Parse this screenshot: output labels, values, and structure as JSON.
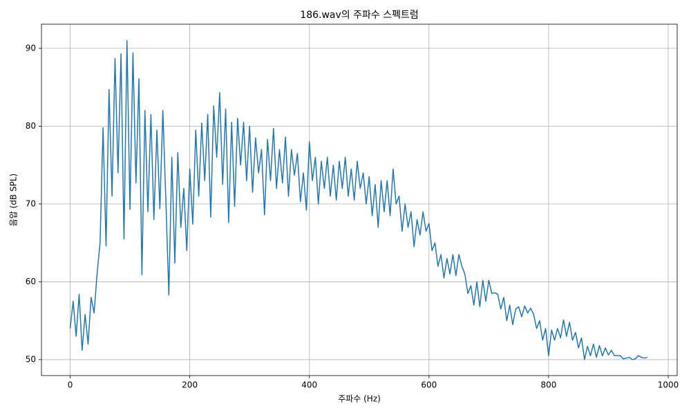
{
  "chart_data": {
    "type": "line",
    "title": "186.wav의 주파수 스펙트럼",
    "x_label": "주파수 (Hz)",
    "y_label": "음압 (dB SPL)",
    "color": "#1f77b4",
    "grid": true,
    "xlim": [
      -48,
      1015
    ],
    "ylim": [
      47.95,
      93.1
    ],
    "xticks": [
      0,
      200,
      400,
      600,
      800,
      1000
    ],
    "yticks": [
      50,
      60,
      70,
      80,
      90
    ],
    "x": [
      0,
      5,
      10,
      15,
      20,
      25,
      30,
      35,
      40,
      45,
      50,
      55,
      60,
      65,
      70,
      75,
      80,
      85,
      90,
      95,
      100,
      105,
      110,
      115,
      120,
      125,
      130,
      135,
      140,
      145,
      150,
      155,
      160,
      165,
      170,
      175,
      180,
      185,
      190,
      195,
      200,
      205,
      210,
      215,
      220,
      225,
      230,
      235,
      240,
      245,
      250,
      255,
      260,
      265,
      270,
      275,
      280,
      285,
      290,
      295,
      300,
      305,
      310,
      315,
      320,
      325,
      330,
      335,
      340,
      345,
      350,
      355,
      360,
      365,
      370,
      375,
      380,
      385,
      390,
      395,
      400,
      405,
      410,
      415,
      420,
      425,
      430,
      435,
      440,
      445,
      450,
      455,
      460,
      465,
      470,
      475,
      480,
      485,
      490,
      495,
      500,
      505,
      510,
      515,
      520,
      525,
      530,
      535,
      540,
      545,
      550,
      555,
      560,
      565,
      570,
      575,
      580,
      585,
      590,
      595,
      600,
      605,
      610,
      615,
      620,
      625,
      630,
      635,
      640,
      645,
      650,
      655,
      660,
      665,
      670,
      675,
      680,
      685,
      690,
      695,
      700,
      705,
      710,
      715,
      720,
      725,
      730,
      735,
      740,
      745,
      750,
      755,
      760,
      765,
      770,
      775,
      780,
      785,
      790,
      795,
      800,
      805,
      810,
      815,
      820,
      825,
      830,
      835,
      840,
      845,
      850,
      855,
      860,
      865,
      870,
      875,
      880,
      885,
      890,
      895,
      900,
      905,
      910,
      915,
      920,
      925,
      930,
      935,
      940,
      945,
      950,
      955,
      960,
      965
    ],
    "values": [
      54,
      57.5,
      53,
      58.4,
      51.2,
      55.8,
      52,
      58,
      56,
      61,
      65,
      79.8,
      64.6,
      84.7,
      71,
      88.7,
      74,
      89.3,
      65.5,
      91,
      69.3,
      89.4,
      72.7,
      86.1,
      60.9,
      82,
      69,
      81.5,
      68,
      79.5,
      69.4,
      82,
      70.5,
      58.3,
      76,
      62.4,
      76.6,
      67,
      72,
      64,
      74.5,
      67.4,
      79.5,
      71,
      80.4,
      73,
      81.5,
      68.3,
      82.6,
      76,
      84.3,
      72.5,
      82.2,
      67.6,
      80.5,
      69.7,
      81,
      75,
      80.5,
      73,
      80,
      71.5,
      78.5,
      74,
      77,
      68.6,
      78.3,
      73,
      79.7,
      72,
      77,
      72.7,
      78.6,
      71,
      77,
      73.7,
      76.5,
      70.3,
      74,
      69.2,
      78,
      73,
      76,
      70,
      75.5,
      72,
      76,
      71,
      75,
      70.5,
      75.5,
      72,
      76,
      71,
      74.5,
      70.5,
      75.5,
      72,
      74,
      70,
      73.5,
      68.5,
      72.5,
      67,
      73,
      69,
      73,
      68.5,
      74.5,
      70,
      71,
      66.5,
      70,
      67,
      69,
      64.5,
      68,
      66,
      69,
      66.5,
      67.5,
      64,
      65,
      62,
      63.5,
      60.5,
      63,
      61,
      63.5,
      60.8,
      63.5,
      62,
      61,
      58.5,
      59.5,
      57,
      60,
      56.8,
      60.2,
      57.5,
      60.2,
      58.5,
      58.6,
      58.4,
      56.5,
      58,
      55,
      57,
      54.5,
      56.5,
      56.8,
      55.5,
      56.9,
      56,
      56.6,
      55.8,
      54,
      55,
      52.5,
      54,
      50.5,
      53.8,
      52.5,
      54,
      52.8,
      55.1,
      53,
      54.8,
      52.5,
      53.5,
      51.5,
      52.8,
      50,
      51.7,
      50.5,
      52,
      50.3,
      51.8,
      50.5,
      51.5,
      50.6,
      51.2,
      50.5,
      50.5,
      50.5,
      50.1,
      50.2,
      50.3,
      50,
      50.1,
      50.5,
      50.3,
      50.2,
      50.3
    ]
  }
}
